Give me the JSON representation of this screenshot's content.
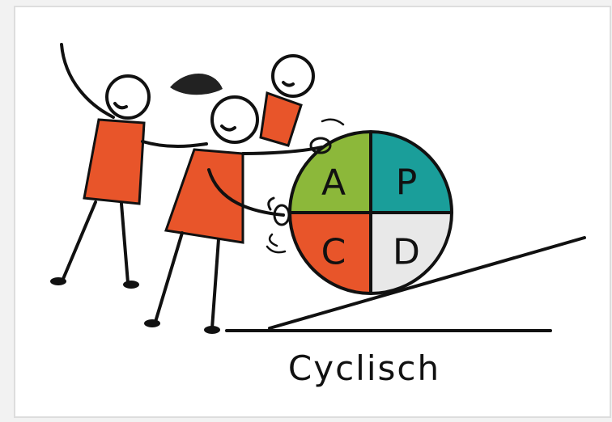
{
  "wheel": {
    "quadrants": [
      {
        "label": "A"
      },
      {
        "label": "P"
      },
      {
        "label": "C"
      },
      {
        "label": "D"
      }
    ]
  },
  "caption": "Cyclisch"
}
